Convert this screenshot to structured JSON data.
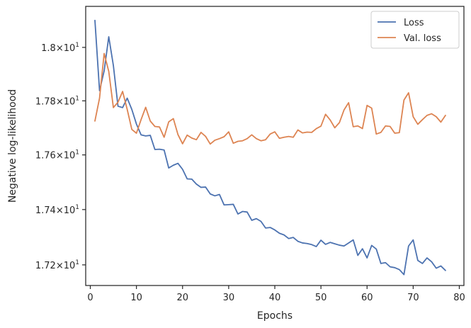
{
  "chart_data": {
    "type": "line",
    "xlabel": "Epochs",
    "ylabel": "Negative log-likelihood",
    "xlim": [
      -1,
      81
    ],
    "ylim": [
      17.126,
      18.155
    ],
    "x_scale": "linear",
    "y_scale": "log",
    "xticks": [
      0,
      10,
      20,
      30,
      40,
      50,
      60,
      70,
      80
    ],
    "xtick_labels": [
      "0",
      "10",
      "20",
      "30",
      "40",
      "50",
      "60",
      "70",
      "80"
    ],
    "yticks": [
      17.2,
      17.4,
      17.6,
      17.8,
      18.0
    ],
    "ytick_labels": [
      {
        "mant": "1.72",
        "base": "×10",
        "exp": "1"
      },
      {
        "mant": "1.74",
        "base": "×10",
        "exp": "1"
      },
      {
        "mant": "1.76",
        "base": "×10",
        "exp": "1"
      },
      {
        "mant": "1.78",
        "base": "×10",
        "exp": "1"
      },
      {
        "mant": "1.8",
        "base": "×10",
        "exp": "1"
      }
    ],
    "grid": false,
    "legend_position": "top-right",
    "x": [
      1,
      2,
      3,
      4,
      5,
      6,
      7,
      8,
      9,
      10,
      11,
      12,
      13,
      14,
      15,
      16,
      17,
      18,
      19,
      20,
      21,
      22,
      23,
      24,
      25,
      26,
      27,
      28,
      29,
      30,
      31,
      32,
      33,
      34,
      35,
      36,
      37,
      38,
      39,
      40,
      41,
      42,
      43,
      44,
      45,
      46,
      47,
      48,
      49,
      50,
      51,
      52,
      53,
      54,
      55,
      56,
      57,
      58,
      59,
      60,
      61,
      62,
      63,
      64,
      65,
      66,
      67,
      68,
      69,
      70,
      71,
      72,
      73,
      74,
      75,
      76,
      77
    ],
    "series": [
      {
        "name": "Loss",
        "color": "#4c72b0",
        "values": [
          18.102,
          17.838,
          17.912,
          18.04,
          17.932,
          17.78,
          17.775,
          17.81,
          17.768,
          17.714,
          17.674,
          17.67,
          17.672,
          17.62,
          17.621,
          17.618,
          17.552,
          17.562,
          17.569,
          17.547,
          17.512,
          17.511,
          17.493,
          17.481,
          17.482,
          17.457,
          17.45,
          17.455,
          17.417,
          17.418,
          17.419,
          17.384,
          17.393,
          17.391,
          17.361,
          17.367,
          17.357,
          17.333,
          17.335,
          17.326,
          17.314,
          17.308,
          17.295,
          17.299,
          17.285,
          17.279,
          17.277,
          17.273,
          17.266,
          17.289,
          17.274,
          17.281,
          17.276,
          17.271,
          17.268,
          17.279,
          17.29,
          17.234,
          17.258,
          17.225,
          17.27,
          17.257,
          17.205,
          17.208,
          17.193,
          17.19,
          17.183,
          17.165,
          17.268,
          17.29,
          17.216,
          17.205,
          17.225,
          17.211,
          17.188,
          17.196,
          17.18
        ]
      },
      {
        "name": "Val. loss",
        "color": "#dd8452",
        "values": [
          17.725,
          17.81,
          17.977,
          17.91,
          17.775,
          17.795,
          17.835,
          17.768,
          17.694,
          17.68,
          17.73,
          17.776,
          17.725,
          17.705,
          17.703,
          17.665,
          17.722,
          17.734,
          17.675,
          17.641,
          17.673,
          17.662,
          17.656,
          17.683,
          17.668,
          17.64,
          17.654,
          17.66,
          17.667,
          17.685,
          17.643,
          17.65,
          17.652,
          17.66,
          17.674,
          17.66,
          17.652,
          17.656,
          17.677,
          17.685,
          17.661,
          17.665,
          17.668,
          17.665,
          17.692,
          17.681,
          17.684,
          17.683,
          17.697,
          17.706,
          17.75,
          17.729,
          17.7,
          17.719,
          17.766,
          17.793,
          17.704,
          17.707,
          17.697,
          17.783,
          17.773,
          17.677,
          17.683,
          17.707,
          17.705,
          17.68,
          17.682,
          17.803,
          17.83,
          17.741,
          17.713,
          17.73,
          17.746,
          17.752,
          17.741,
          17.721,
          17.746
        ]
      }
    ]
  }
}
